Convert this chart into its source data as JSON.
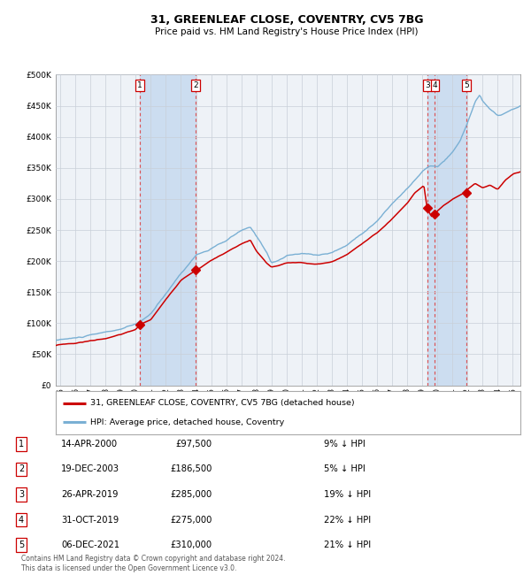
{
  "title": "31, GREENLEAF CLOSE, COVENTRY, CV5 7BG",
  "subtitle": "Price paid vs. HM Land Registry's House Price Index (HPI)",
  "ylim": [
    0,
    500000
  ],
  "yticks": [
    0,
    50000,
    100000,
    150000,
    200000,
    250000,
    300000,
    350000,
    400000,
    450000,
    500000
  ],
  "ytick_labels": [
    "£0",
    "£50K",
    "£100K",
    "£150K",
    "£200K",
    "£250K",
    "£300K",
    "£350K",
    "£400K",
    "£450K",
    "£500K"
  ],
  "xlim_start": 1994.7,
  "xlim_end": 2025.5,
  "xticks": [
    1995,
    1996,
    1997,
    1998,
    1999,
    2000,
    2001,
    2002,
    2003,
    2004,
    2005,
    2006,
    2007,
    2008,
    2009,
    2010,
    2011,
    2012,
    2013,
    2014,
    2015,
    2016,
    2017,
    2018,
    2019,
    2020,
    2021,
    2022,
    2023,
    2024,
    2025
  ],
  "hpi_color": "#7ab0d4",
  "price_color": "#cc0000",
  "background_color": "#ffffff",
  "chart_bg_color": "#eef2f7",
  "grid_color": "#c8cfd8",
  "shade_color": "#ccddf0",
  "vline_color": "#dd4444",
  "transactions": [
    {
      "num": 1,
      "date_decimal": 2000.29,
      "price": 97500,
      "label": "1"
    },
    {
      "num": 2,
      "date_decimal": 2003.97,
      "price": 186500,
      "label": "2"
    },
    {
      "num": 3,
      "date_decimal": 2019.32,
      "price": 285000,
      "label": "3"
    },
    {
      "num": 4,
      "date_decimal": 2019.83,
      "price": 275000,
      "label": "4"
    },
    {
      "num": 5,
      "date_decimal": 2021.93,
      "price": 310000,
      "label": "5"
    }
  ],
  "legend_entries": [
    {
      "label": "31, GREENLEAF CLOSE, COVENTRY, CV5 7BG (detached house)",
      "color": "#cc0000"
    },
    {
      "label": "HPI: Average price, detached house, Coventry",
      "color": "#7ab0d4"
    }
  ],
  "table_rows": [
    {
      "num": "1",
      "date": "14-APR-2000",
      "price": "£97,500",
      "pct": "9% ↓ HPI"
    },
    {
      "num": "2",
      "date": "19-DEC-2003",
      "price": "£186,500",
      "pct": "5% ↓ HPI"
    },
    {
      "num": "3",
      "date": "26-APR-2019",
      "price": "£285,000",
      "pct": "19% ↓ HPI"
    },
    {
      "num": "4",
      "date": "31-OCT-2019",
      "price": "£275,000",
      "pct": "22% ↓ HPI"
    },
    {
      "num": "5",
      "date": "06-DEC-2021",
      "price": "£310,000",
      "pct": "21% ↓ HPI"
    }
  ],
  "footer": "Contains HM Land Registry data © Crown copyright and database right 2024.\nThis data is licensed under the Open Government Licence v3.0.",
  "shade_regions": [
    {
      "start": 2000.29,
      "end": 2003.97
    },
    {
      "start": 2019.32,
      "end": 2021.93
    }
  ]
}
